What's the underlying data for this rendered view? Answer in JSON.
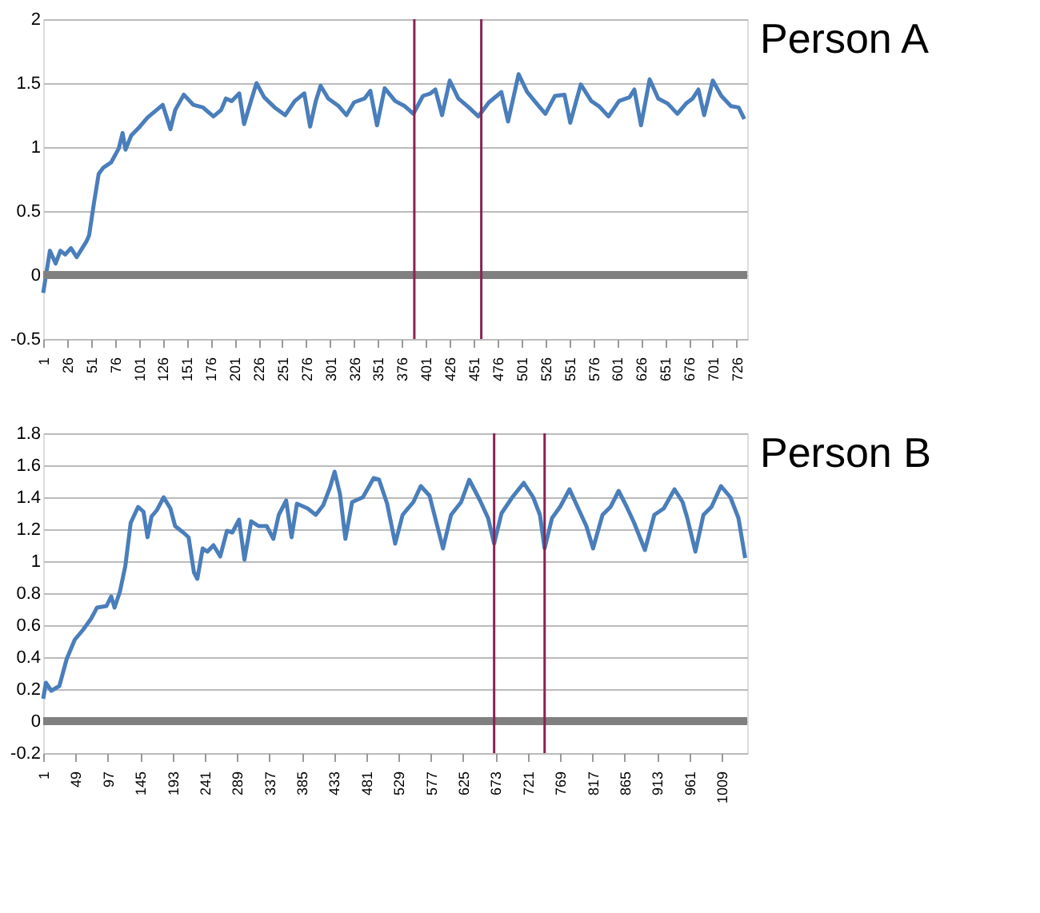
{
  "chart_data": [
    {
      "type": "line",
      "title": "Person A",
      "xlim": [
        1,
        737
      ],
      "xticks": [
        1,
        26,
        51,
        76,
        101,
        126,
        151,
        176,
        201,
        226,
        251,
        276,
        301,
        326,
        351,
        376,
        401,
        426,
        451,
        476,
        501,
        526,
        551,
        576,
        601,
        626,
        651,
        676,
        701,
        726
      ],
      "ylim": [
        -0.5,
        2
      ],
      "yticks": [
        -0.5,
        0,
        0.5,
        1,
        1.5,
        2
      ],
      "grid": "y",
      "series": [
        {
          "color": "#4a7ebb",
          "x": [
            1,
            8,
            14,
            19,
            24,
            30,
            36,
            46,
            49,
            54,
            59,
            64,
            72,
            80,
            84,
            87,
            93,
            102,
            110,
            118,
            126,
            134,
            139,
            148,
            158,
            168,
            179,
            187,
            192,
            198,
            206,
            211,
            219,
            224,
            232,
            243,
            254,
            264,
            274,
            280,
            286,
            291,
            299,
            310,
            318,
            326,
            337,
            343,
            350,
            358,
            369,
            379,
            388,
            398,
            406,
            411,
            418,
            426,
            435,
            446,
            456,
            467,
            480,
            487,
            498,
            507,
            518,
            526,
            536,
            546,
            552,
            563,
            574,
            582,
            592,
            603,
            614,
            619,
            626,
            635,
            644,
            654,
            664,
            673,
            680,
            686,
            692,
            701,
            710,
            720,
            728,
            734
          ],
          "values": [
            -0.14,
            0.19,
            0.09,
            0.19,
            0.16,
            0.21,
            0.14,
            0.26,
            0.31,
            0.56,
            0.79,
            0.84,
            0.88,
            0.99,
            1.11,
            0.98,
            1.09,
            1.16,
            1.23,
            1.28,
            1.33,
            1.14,
            1.29,
            1.41,
            1.33,
            1.31,
            1.24,
            1.29,
            1.38,
            1.36,
            1.42,
            1.18,
            1.38,
            1.5,
            1.39,
            1.31,
            1.25,
            1.36,
            1.42,
            1.16,
            1.36,
            1.48,
            1.38,
            1.32,
            1.25,
            1.35,
            1.38,
            1.44,
            1.17,
            1.46,
            1.36,
            1.32,
            1.26,
            1.4,
            1.42,
            1.45,
            1.25,
            1.52,
            1.38,
            1.31,
            1.24,
            1.35,
            1.43,
            1.2,
            1.57,
            1.43,
            1.33,
            1.26,
            1.4,
            1.41,
            1.19,
            1.49,
            1.36,
            1.32,
            1.24,
            1.36,
            1.39,
            1.45,
            1.17,
            1.53,
            1.38,
            1.34,
            1.26,
            1.34,
            1.38,
            1.45,
            1.25,
            1.52,
            1.4,
            1.32,
            1.31,
            1.22
          ]
        }
      ],
      "ref_lines": [
        {
          "axis": "x",
          "value": 389,
          "color": "#8b2252"
        },
        {
          "axis": "x",
          "value": 459,
          "color": "#8b2252"
        },
        {
          "axis": "y",
          "value": 0,
          "color": "#808080"
        }
      ]
    },
    {
      "type": "line",
      "title": "Person B",
      "xlim": [
        1,
        1047
      ],
      "xticks": [
        1,
        49,
        97,
        145,
        193,
        241,
        289,
        337,
        385,
        433,
        481,
        529,
        577,
        625,
        673,
        721,
        769,
        817,
        865,
        913,
        961,
        1009
      ],
      "ylim": [
        -0.2,
        1.8
      ],
      "yticks": [
        -0.2,
        0,
        0.2,
        0.4,
        0.6,
        0.8,
        1,
        1.2,
        1.4,
        1.6,
        1.8
      ],
      "grid": "y",
      "series": [
        {
          "color": "#4a7ebb",
          "x": [
            1,
            5,
            13,
            25,
            36,
            48,
            60,
            72,
            81,
            95,
            102,
            107,
            115,
            123,
            131,
            142,
            150,
            156,
            162,
            170,
            180,
            190,
            197,
            209,
            217,
            225,
            230,
            238,
            245,
            254,
            264,
            274,
            282,
            292,
            300,
            310,
            321,
            333,
            343,
            351,
            362,
            370,
            378,
            394,
            406,
            417,
            427,
            434,
            442,
            450,
            460,
            476,
            492,
            500,
            512,
            524,
            535,
            551,
            562,
            575,
            595,
            607,
            622,
            634,
            650,
            662,
            671,
            682,
            698,
            715,
            729,
            739,
            746,
            757,
            769,
            783,
            796,
            808,
            818,
            832,
            844,
            856,
            868,
            879,
            895,
            909,
            923,
            939,
            951,
            958,
            970,
            982,
            994,
            1008,
            1022,
            1034,
            1044
          ],
          "values": [
            0.14,
            0.24,
            0.19,
            0.22,
            0.39,
            0.51,
            0.57,
            0.64,
            0.71,
            0.72,
            0.78,
            0.71,
            0.81,
            0.97,
            1.24,
            1.34,
            1.31,
            1.15,
            1.28,
            1.32,
            1.4,
            1.33,
            1.22,
            1.18,
            1.15,
            0.93,
            0.89,
            1.08,
            1.06,
            1.1,
            1.03,
            1.19,
            1.18,
            1.26,
            1.01,
            1.25,
            1.22,
            1.22,
            1.14,
            1.29,
            1.38,
            1.15,
            1.36,
            1.33,
            1.29,
            1.35,
            1.46,
            1.56,
            1.42,
            1.14,
            1.37,
            1.4,
            1.52,
            1.51,
            1.36,
            1.11,
            1.29,
            1.37,
            1.47,
            1.41,
            1.08,
            1.29,
            1.37,
            1.51,
            1.38,
            1.27,
            1.11,
            1.3,
            1.4,
            1.49,
            1.4,
            1.29,
            1.08,
            1.27,
            1.34,
            1.45,
            1.33,
            1.22,
            1.08,
            1.29,
            1.34,
            1.44,
            1.34,
            1.24,
            1.07,
            1.29,
            1.33,
            1.45,
            1.37,
            1.27,
            1.06,
            1.29,
            1.34,
            1.47,
            1.4,
            1.27,
            1.02
          ]
        }
      ],
      "ref_lines": [
        {
          "axis": "x",
          "value": 671,
          "color": "#8b2252"
        },
        {
          "axis": "x",
          "value": 746,
          "color": "#8b2252"
        },
        {
          "axis": "y",
          "value": 0,
          "color": "#808080"
        }
      ]
    }
  ]
}
